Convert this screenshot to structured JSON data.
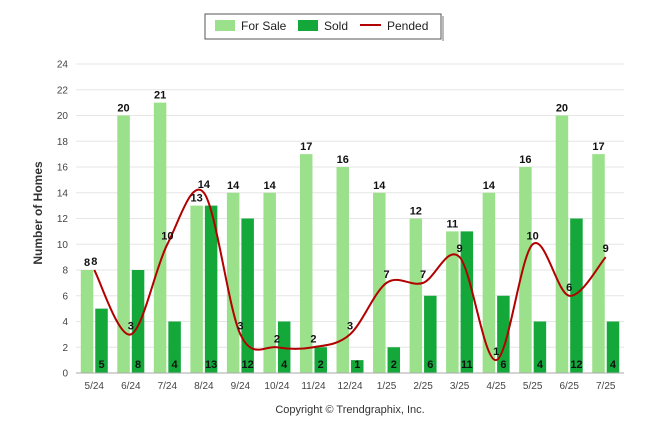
{
  "chart_data": {
    "type": "bar",
    "categories": [
      "5/24",
      "6/24",
      "7/24",
      "8/24",
      "9/24",
      "10/24",
      "11/24",
      "12/24",
      "1/25",
      "2/25",
      "3/25",
      "4/25",
      "5/25",
      "6/25",
      "7/25"
    ],
    "series": [
      {
        "name": "For Sale",
        "type": "bar",
        "color": "#9be08a",
        "values": [
          8,
          20,
          21,
          13,
          14,
          14,
          17,
          16,
          14,
          12,
          11,
          14,
          16,
          20,
          17
        ]
      },
      {
        "name": "Sold",
        "type": "bar",
        "color": "#14a83a",
        "values": [
          5,
          8,
          4,
          13,
          12,
          4,
          2,
          1,
          2,
          6,
          11,
          6,
          4,
          12,
          4
        ]
      },
      {
        "name": "Pended",
        "type": "line",
        "color": "#b30000",
        "values": [
          8,
          3,
          10,
          14,
          3,
          2,
          2,
          3,
          7,
          7,
          9,
          1,
          10,
          6,
          9
        ]
      }
    ],
    "ylabel": "Number of Homes",
    "xlabel": "",
    "ylim": [
      0,
      24
    ],
    "yticks": [
      0,
      2,
      4,
      6,
      8,
      10,
      12,
      14,
      16,
      18,
      20,
      22,
      24
    ],
    "grid": true,
    "legend_position": "top-center"
  },
  "footer": {
    "copyright": "Copyright © Trendgraphix, Inc."
  }
}
